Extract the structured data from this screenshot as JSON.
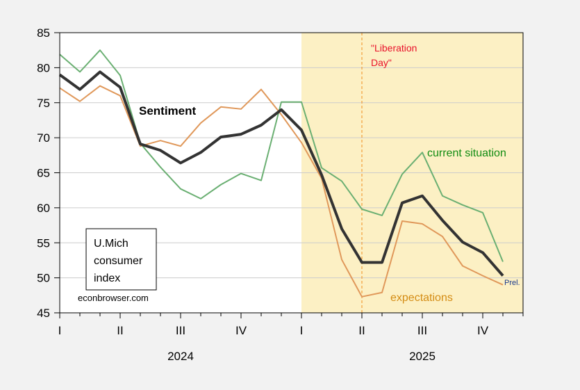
{
  "chart_data": {
    "type": "line",
    "title": "",
    "xlabel": "",
    "ylabel": "",
    "ylim": [
      45,
      85
    ],
    "yticks": [
      45,
      50,
      55,
      60,
      65,
      70,
      75,
      80,
      85
    ],
    "grid": true,
    "x": [
      "2024-01",
      "2024-02",
      "2024-03",
      "2024-04",
      "2024-05",
      "2024-06",
      "2024-07",
      "2024-08",
      "2024-09",
      "2024-10",
      "2024-11",
      "2024-12",
      "2025-01",
      "2025-02",
      "2025-03",
      "2025-04",
      "2025-05",
      "2025-06",
      "2025-07",
      "2025-08",
      "2025-09",
      "2025-10",
      "2025-11"
    ],
    "xlim_months": [
      0,
      23
    ],
    "quarter_ticks": [
      {
        "month": 0,
        "label": "I"
      },
      {
        "month": 3,
        "label": "II"
      },
      {
        "month": 6,
        "label": "III"
      },
      {
        "month": 9,
        "label": "IV"
      },
      {
        "month": 12,
        "label": "I"
      },
      {
        "month": 15,
        "label": "II"
      },
      {
        "month": 18,
        "label": "III"
      },
      {
        "month": 21,
        "label": "IV"
      }
    ],
    "year_labels": [
      {
        "month": 6,
        "label": "2024"
      },
      {
        "month": 18,
        "label": "2025"
      }
    ],
    "shaded_region": {
      "from_month": 12,
      "to_month": 23,
      "color": "#fcf0c4"
    },
    "event_line": {
      "month": 15,
      "color": "#f08c1a",
      "label_line1": "\"Liberation",
      "label_line2": "Day\"",
      "label_color": "#e8102a"
    },
    "series": [
      {
        "name": "current situation",
        "color": "#6aaf72",
        "label_color": "#128c12",
        "values": [
          81.9,
          79.4,
          82.5,
          78.9,
          69.2,
          65.8,
          62.7,
          61.3,
          63.3,
          64.9,
          63.9,
          75.1,
          75.1,
          65.7,
          63.8,
          59.8,
          58.9,
          64.8,
          67.9,
          61.7,
          60.4,
          59.3,
          52.3
        ]
      },
      {
        "name": "expectations",
        "color": "#e0985a",
        "label_color": "#d48c14",
        "values": [
          77.1,
          75.2,
          77.4,
          76.0,
          68.8,
          69.6,
          68.8,
          72.1,
          74.4,
          74.1,
          76.9,
          73.3,
          69.3,
          64.2,
          52.6,
          47.3,
          47.9,
          58.1,
          57.7,
          55.9,
          51.7,
          50.3,
          49.0
        ]
      },
      {
        "name": "Sentiment",
        "color": "#333333",
        "label_color": "#000000",
        "values": [
          79.0,
          76.9,
          79.4,
          77.2,
          69.1,
          68.2,
          66.4,
          67.9,
          70.1,
          70.5,
          71.8,
          74.0,
          71.1,
          64.7,
          57.0,
          52.2,
          52.2,
          60.7,
          61.7,
          58.2,
          55.1,
          53.6,
          50.3
        ]
      }
    ],
    "annotations": {
      "sentiment_label": "Sentiment",
      "current_label": "current situation",
      "expectations_label": "expectations",
      "prel_label": "Prel.",
      "prel_color": "#1a3a8c",
      "box_line1": "U.Mich",
      "box_line2": "consumer",
      "box_line3": "index",
      "source": "econbrowser.com"
    }
  }
}
